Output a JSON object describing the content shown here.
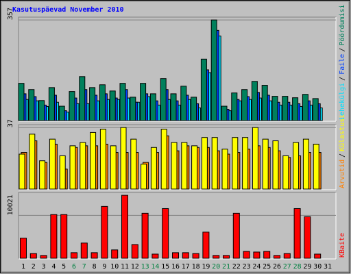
{
  "chart_data": [
    {
      "type": "bar",
      "title": "Kasutuspäevad November 2010",
      "ylim": [
        0,
        367
      ],
      "yticks": [
        357
      ],
      "legend_separator": "/",
      "series": [
        {
          "name": "Lehekülgi",
          "color": "#00e0ff",
          "values": [
            75,
            70,
            50,
            65,
            30,
            60,
            60,
            70,
            75,
            75,
            80,
            65,
            85,
            55,
            75,
            55,
            75,
            45,
            170,
            300,
            35,
            70,
            75,
            80,
            70,
            55,
            55,
            50,
            55,
            45,
            null
          ]
        },
        {
          "name": "Faile",
          "color": "#0040ff",
          "values": [
            95,
            85,
            55,
            90,
            35,
            80,
            110,
            90,
            95,
            80,
            110,
            65,
            95,
            70,
            110,
            70,
            90,
            60,
            180,
            320,
            40,
            75,
            85,
            100,
            90,
            65,
            65,
            60,
            70,
            60,
            null
          ]
        },
        {
          "name": "Pöördumisi",
          "color": "#00805c",
          "values": [
            132,
            110,
            71,
            117,
            51,
            103,
            156,
            117,
            127,
            105,
            132,
            83,
            132,
            95,
            149,
            95,
            122,
            83,
            218,
            357,
            51,
            98,
            110,
            139,
            125,
            86,
            86,
            81,
            93,
            78,
            null
          ]
        }
      ]
    },
    {
      "type": "bar",
      "ylim": [
        0,
        38.7
      ],
      "yticks": [
        37
      ],
      "legend_separator": "/",
      "series": [
        {
          "name": "Arvutid",
          "color": "#ff8000",
          "values": [
            22,
            29,
            16,
            27,
            12,
            25,
            26,
            26,
            27,
            22,
            22,
            22,
            16,
            22,
            32,
            23,
            26,
            25,
            25,
            23,
            21,
            22,
            24,
            26,
            25,
            23,
            19,
            20,
            22,
            22,
            null
          ]
        },
        {
          "name": "Külastusi",
          "color": "#ffff00",
          "values": [
            21,
            33,
            17,
            30,
            20,
            26,
            28,
            34,
            36,
            26,
            37,
            30,
            15,
            25,
            36,
            28,
            28,
            26,
            31,
            31,
            24,
            31,
            31,
            37,
            30,
            29,
            20,
            28,
            30,
            27,
            null
          ]
        }
      ]
    },
    {
      "type": "bar",
      "ylim": [
        0,
        15355
      ],
      "yticks": [
        10021
      ],
      "categories": [
        "1",
        "2",
        "3",
        "4",
        "5",
        "6",
        "7",
        "8",
        "9",
        "10",
        "11",
        "12",
        "13",
        "14",
        "15",
        "16",
        "17",
        "18",
        "19",
        "20",
        "21",
        "22",
        "23",
        "24",
        "25",
        "26",
        "27",
        "28",
        "29",
        "30",
        "31"
      ],
      "category_colors": [
        "#000000",
        "#000000",
        "#000000",
        "#000000",
        "#000000",
        "#008040",
        "#008040",
        "#000000",
        "#000000",
        "#000000",
        "#000000",
        "#000000",
        "#008040",
        "#008040",
        "#000000",
        "#000000",
        "#000000",
        "#000000",
        "#000000",
        "#008040",
        "#008040",
        "#000000",
        "#000000",
        "#000000",
        "#000000",
        "#000000",
        "#008040",
        "#008040",
        "#000000",
        "#000000",
        "#000000"
      ],
      "series": [
        {
          "name": "KBaite",
          "color": "#ff0000",
          "values": [
            4700,
            1100,
            650,
            10200,
            10200,
            1300,
            3550,
            1300,
            12100,
            1950,
            14700,
            3200,
            10500,
            970,
            11600,
            1300,
            1300,
            1100,
            6100,
            650,
            650,
            10500,
            1600,
            1450,
            1600,
            650,
            1100,
            11600,
            9700,
            970,
            null
          ]
        }
      ]
    }
  ]
}
